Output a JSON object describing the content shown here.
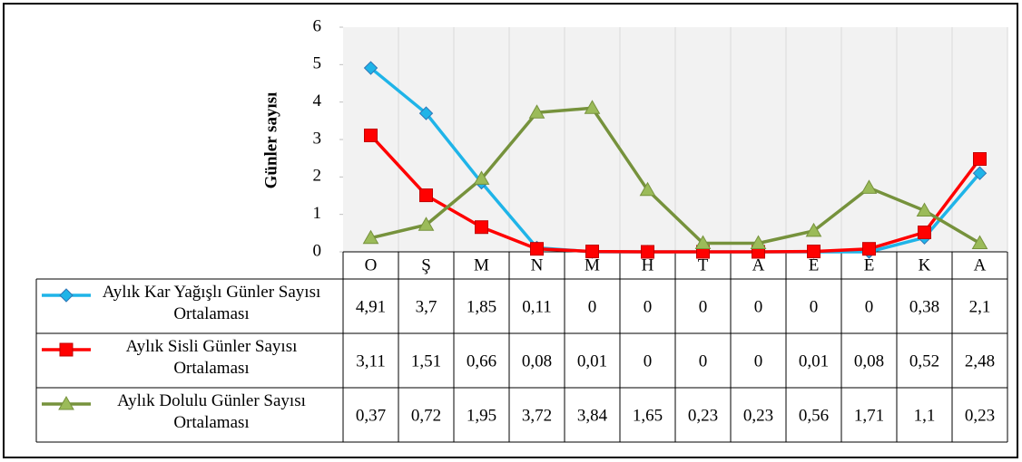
{
  "chart_data": {
    "type": "line",
    "y_label": "Günler sayısı",
    "categories": [
      "O",
      "Ş",
      "M",
      "N",
      "M",
      "H",
      "T",
      "A",
      "E",
      "E",
      "K",
      "A"
    ],
    "series": [
      {
        "name": "Aylık Kar Yağışlı Günler Sayısı Ortalaması",
        "color": "#1fb4e8",
        "marker": "diamond",
        "values": [
          4.91,
          3.7,
          1.85,
          0.11,
          0,
          0,
          0,
          0,
          0,
          0,
          0.38,
          2.1
        ],
        "value_labels": [
          "4,91",
          "3,7",
          "1,85",
          "0,11",
          "0",
          "0",
          "0",
          "0",
          "0",
          "0",
          "0,38",
          "2,1"
        ]
      },
      {
        "name": "Aylık Sisli Günler Sayısı Ortalaması",
        "color": "#ff0000",
        "marker": "square",
        "values": [
          3.11,
          1.51,
          0.66,
          0.08,
          0.01,
          0,
          0,
          0,
          0.01,
          0.08,
          0.52,
          2.48
        ],
        "value_labels": [
          "3,11",
          "1,51",
          "0,66",
          "0,08",
          "0,01",
          "0",
          "0",
          "0",
          "0,01",
          "0,08",
          "0,52",
          "2,48"
        ]
      },
      {
        "name": "Aylık Dolulu Günler Sayısı Ortalaması",
        "color": "#76923c",
        "marker": "triangle",
        "values": [
          0.37,
          0.72,
          1.95,
          3.72,
          3.84,
          1.65,
          0.23,
          0.23,
          0.56,
          1.71,
          1.1,
          0.23
        ],
        "value_labels": [
          "0,37",
          "0,72",
          "1,95",
          "3,72",
          "3,84",
          "1,65",
          "0,23",
          "0,23",
          "0,56",
          "1,71",
          "1,1",
          "0,23"
        ]
      }
    ],
    "ylim": [
      0,
      6
    ],
    "yticks": [
      0,
      1,
      2,
      3,
      4,
      5,
      6
    ]
  }
}
